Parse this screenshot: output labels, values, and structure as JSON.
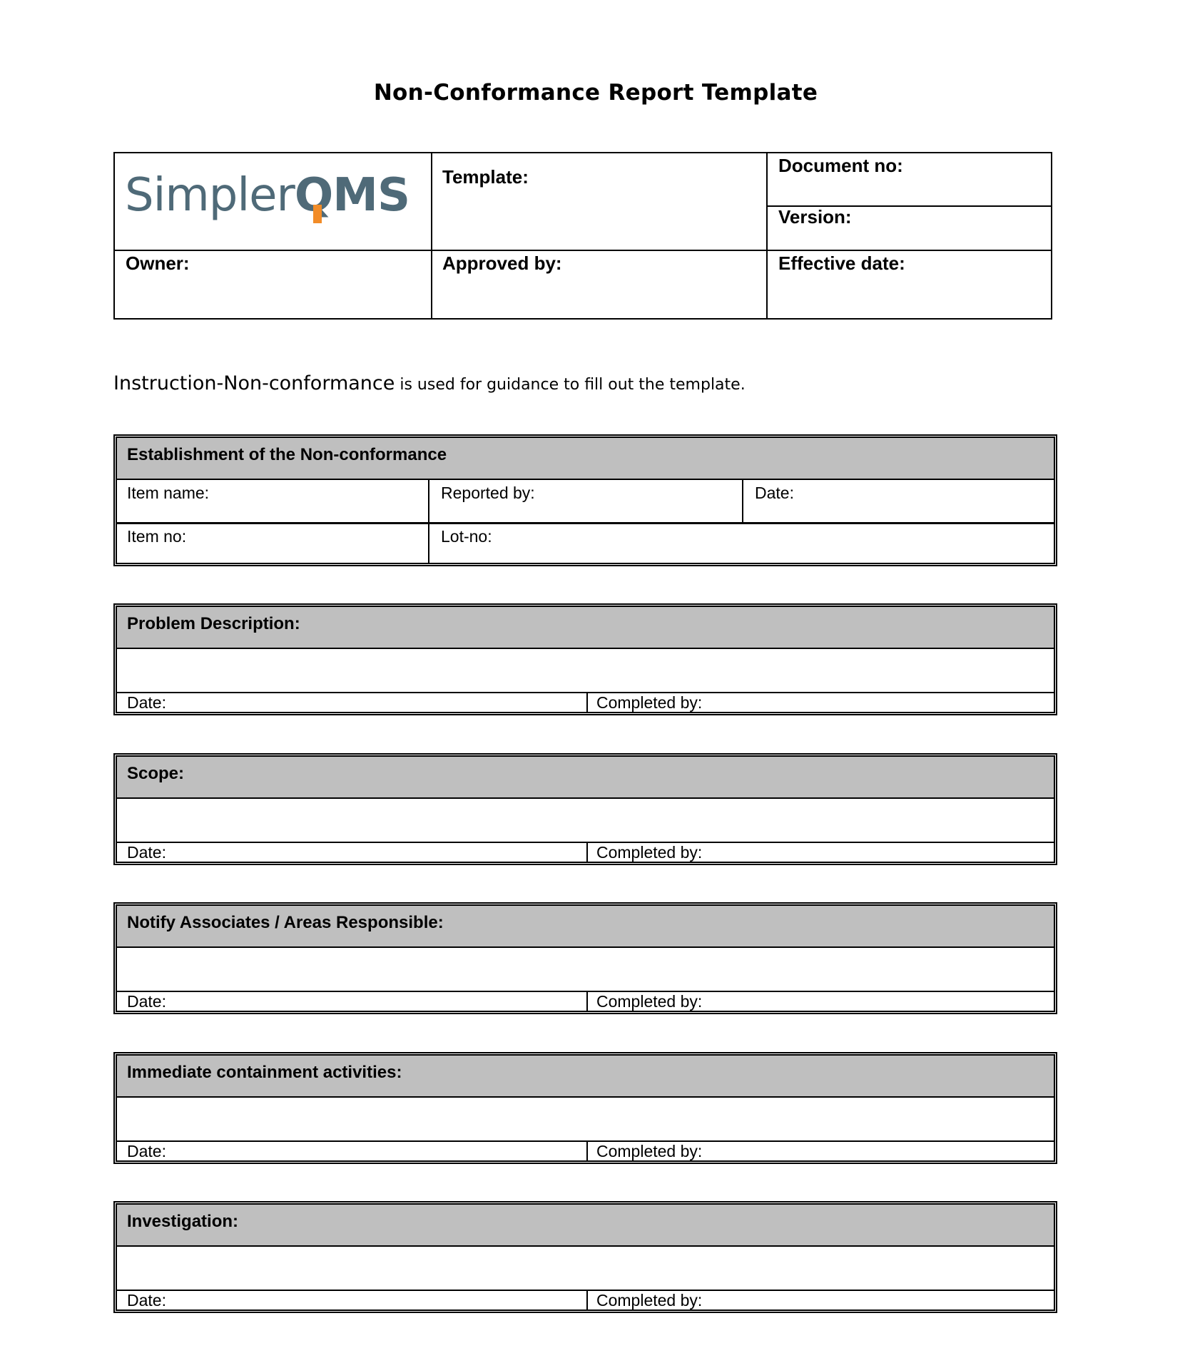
{
  "title": "Non-Conformance Report Template",
  "header": {
    "logo": {
      "text_light": "Simpler",
      "text_bold_q": "Q",
      "text_bold_rest": "MS",
      "brand_color": "#4f6a78",
      "accent_color": "#f28c28"
    },
    "template_label": "Template:",
    "document_no_label": "Document no:",
    "version_label": "Version:",
    "owner_label": "Owner:",
    "approved_by_label": "Approved by:",
    "effective_date_label": "Effective date:"
  },
  "instruction": {
    "link_text": "Instruction-Non-conformance",
    "rest": " is used for guidance to fill out the template."
  },
  "establishment": {
    "title": "Establishment of the Non-conformance",
    "item_name": "Item name:",
    "reported_by": "Reported by:",
    "date": "Date:",
    "item_no": "Item no:",
    "lot_no": "Lot-no:"
  },
  "sections": [
    {
      "title": "Problem Description:",
      "date_label": "Date:",
      "completed_label": "Completed by:"
    },
    {
      "title": "Scope:",
      "date_label": "Date:",
      "completed_label": "Completed by:"
    },
    {
      "title": "Notify Associates / Areas Responsible:",
      "date_label": "Date:",
      "completed_label": "Completed by:"
    },
    {
      "title": "Immediate containment activities:",
      "date_label": "Date:",
      "completed_label": "Completed by:"
    },
    {
      "title": "Investigation:",
      "date_label": "Date:",
      "completed_label": "Completed by:"
    }
  ]
}
